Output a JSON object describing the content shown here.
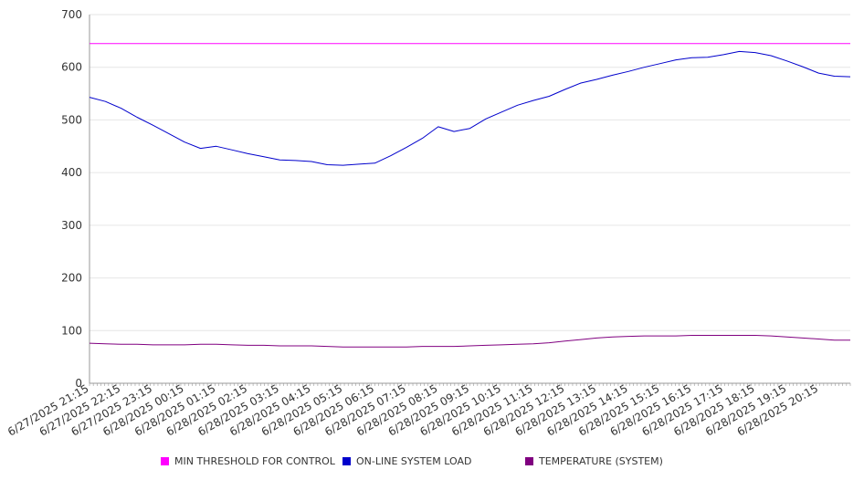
{
  "chart_data": {
    "type": "line",
    "title": "",
    "xlabel": "",
    "ylabel": "",
    "ylim": [
      0,
      700
    ],
    "yticks": [
      "0",
      "100",
      "200",
      "300",
      "400",
      "500",
      "600",
      "700"
    ],
    "grid": true,
    "legend_position": "bottom",
    "x_tick_labels": [
      "6/27/2025 21:15",
      "6/27/2025 22:15",
      "6/27/2025 23:15",
      "6/28/2025 00:15",
      "6/28/2025 01:15",
      "6/28/2025 02:15",
      "6/28/2025 03:15",
      "6/28/2025 04:15",
      "6/28/2025 05:15",
      "6/28/2025 06:15",
      "6/28/2025 07:15",
      "6/28/2025 08:15",
      "6/28/2025 09:15",
      "6/28/2025 10:15",
      "6/28/2025 11:15",
      "6/28/2025 12:15",
      "6/28/2025 13:15",
      "6/28/2025 14:15",
      "6/28/2025 15:15",
      "6/28/2025 16:15",
      "6/28/2025 17:15",
      "6/28/2025 18:15",
      "6/28/2025 19:15",
      "6/28/2025 20:15"
    ],
    "x": [
      "6/27/2025 21:15",
      "6/27/2025 21:45",
      "6/27/2025 22:15",
      "6/27/2025 22:45",
      "6/27/2025 23:15",
      "6/27/2025 23:45",
      "6/28/2025 00:15",
      "6/28/2025 00:45",
      "6/28/2025 01:15",
      "6/28/2025 01:45",
      "6/28/2025 02:15",
      "6/28/2025 02:45",
      "6/28/2025 03:15",
      "6/28/2025 03:45",
      "6/28/2025 04:15",
      "6/28/2025 04:45",
      "6/28/2025 05:15",
      "6/28/2025 05:45",
      "6/28/2025 06:15",
      "6/28/2025 06:45",
      "6/28/2025 07:15",
      "6/28/2025 07:45",
      "6/28/2025 08:15",
      "6/28/2025 08:45",
      "6/28/2025 09:15",
      "6/28/2025 09:45",
      "6/28/2025 10:15",
      "6/28/2025 10:45",
      "6/28/2025 11:15",
      "6/28/2025 11:45",
      "6/28/2025 12:15",
      "6/28/2025 12:45",
      "6/28/2025 13:15",
      "6/28/2025 13:45",
      "6/28/2025 14:15",
      "6/28/2025 14:45",
      "6/28/2025 15:15",
      "6/28/2025 15:45",
      "6/28/2025 16:15",
      "6/28/2025 16:45",
      "6/28/2025 17:15",
      "6/28/2025 17:45",
      "6/28/2025 18:15",
      "6/28/2025 18:45",
      "6/28/2025 19:15",
      "6/28/2025 19:45",
      "6/28/2025 20:15",
      "6/28/2025 20:45",
      "6/28/2025 21:15"
    ],
    "series": [
      {
        "name": "MIN THRESHOLD FOR CONTROL",
        "color": "#ff00ff",
        "values": [
          645,
          645,
          645,
          645,
          645,
          645,
          645,
          645,
          645,
          645,
          645,
          645,
          645,
          645,
          645,
          645,
          645,
          645,
          645,
          645,
          645,
          645,
          645,
          645,
          645,
          645,
          645,
          645,
          645,
          645,
          645,
          645,
          645,
          645,
          645,
          645,
          645,
          645,
          645,
          645,
          645,
          645,
          645,
          645,
          645,
          645,
          645,
          645,
          645
        ]
      },
      {
        "name": "ON-LINE SYSTEM LOAD",
        "color": "#0000cc",
        "values": [
          543,
          535,
          522,
          505,
          490,
          474,
          458,
          446,
          450,
          443,
          436,
          430,
          424,
          423,
          421,
          415,
          414,
          416,
          418,
          432,
          448,
          465,
          487,
          478,
          484,
          502,
          515,
          528,
          537,
          545,
          558,
          570,
          577,
          585,
          592,
          600,
          607,
          614,
          618,
          619,
          624,
          630,
          628,
          622,
          612,
          601,
          589,
          583,
          582
        ]
      },
      {
        "name": "TEMPERATURE (SYSTEM)",
        "color": "#800080",
        "values": [
          76,
          75,
          74,
          74,
          73,
          73,
          73,
          74,
          74,
          73,
          72,
          72,
          71,
          71,
          71,
          70,
          69,
          69,
          69,
          69,
          69,
          70,
          70,
          70,
          71,
          72,
          73,
          74,
          75,
          77,
          80,
          83,
          86,
          88,
          89,
          90,
          90,
          90,
          91,
          91,
          91,
          91,
          91,
          90,
          88,
          86,
          84,
          82,
          82
        ]
      }
    ]
  }
}
